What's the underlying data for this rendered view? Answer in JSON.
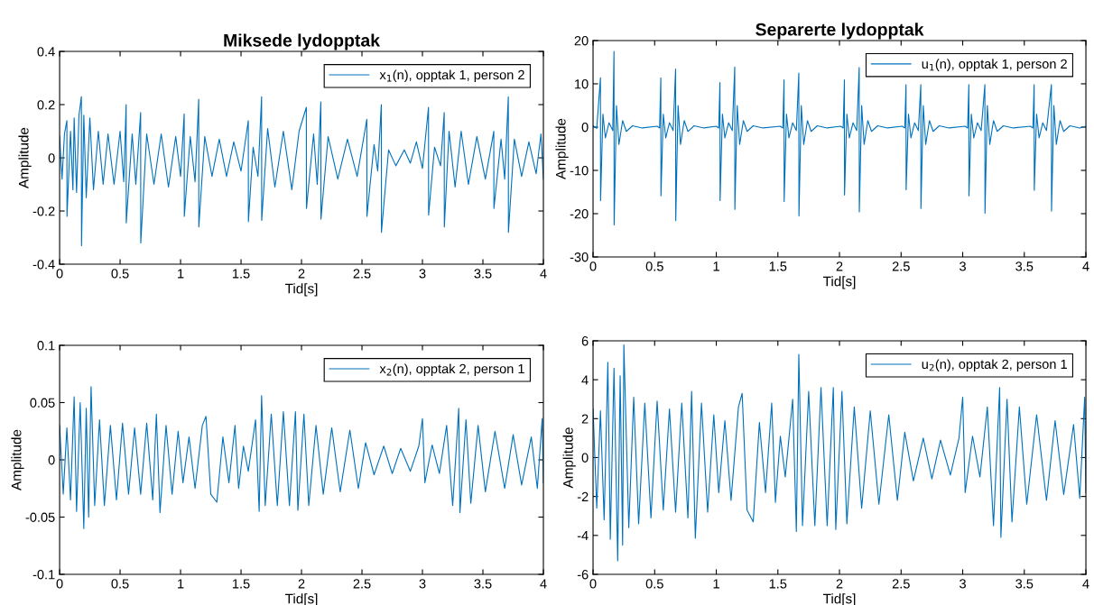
{
  "chart_data": [
    {
      "type": "line",
      "title": "Miksede lydopptak",
      "xlabel": "Tid[s]",
      "ylabel": "Amplitude",
      "xlim": [
        0,
        4
      ],
      "ylim": [
        -0.4,
        0.4
      ],
      "xticks": [
        0,
        0.5,
        1,
        1.5,
        2,
        2.5,
        3,
        3.5,
        4
      ],
      "yticks": [
        -0.4,
        -0.2,
        0,
        0.2,
        0.4
      ],
      "legend": "top right",
      "series": [
        {
          "name": "x$_{1}$(n), opptak 1, person 2",
          "color": "#0072bd",
          "x": [
            0,
            0.02,
            0.04,
            0.06,
            0.061,
            0.09,
            0.11,
            0.12,
            0.14,
            0.16,
            0.18,
            0.181,
            0.2,
            0.22,
            0.25,
            0.28,
            0.32,
            0.36,
            0.4,
            0.45,
            0.5,
            0.53,
            0.55,
            0.551,
            0.6,
            0.63,
            0.67,
            0.671,
            0.72,
            0.78,
            0.84,
            0.9,
            0.96,
            1.0,
            1.03,
            1.031,
            1.08,
            1.12,
            1.15,
            1.151,
            1.2,
            1.26,
            1.32,
            1.38,
            1.44,
            1.5,
            1.56,
            1.561,
            1.6,
            1.64,
            1.67,
            1.671,
            1.72,
            1.78,
            1.85,
            1.92,
            1.98,
            2.04,
            2.041,
            2.1,
            2.13,
            2.16,
            2.161,
            2.22,
            2.3,
            2.38,
            2.46,
            2.54,
            2.541,
            2.6,
            2.63,
            2.66,
            2.661,
            2.72,
            2.78,
            2.85,
            2.9,
            2.95,
            3.0,
            3.05,
            3.051,
            3.1,
            3.15,
            3.18,
            3.181,
            3.22,
            3.27,
            3.32,
            3.38,
            3.45,
            3.52,
            3.59,
            3.591,
            3.65,
            3.68,
            3.71,
            3.711,
            3.76,
            3.82,
            3.88,
            3.94,
            3.98,
            4.0
          ],
          "values": [
            0.08,
            -0.08,
            0.09,
            0.14,
            -0.22,
            0.1,
            -0.12,
            0.15,
            -0.13,
            0.16,
            0.23,
            -0.33,
            0.16,
            -0.15,
            0.15,
            -0.12,
            0.1,
            -0.1,
            0.09,
            -0.1,
            0.1,
            -0.09,
            0.2,
            -0.245,
            0.09,
            -0.1,
            0.17,
            -0.32,
            0.09,
            -0.1,
            0.09,
            -0.11,
            0.08,
            -0.07,
            0.165,
            -0.22,
            0.08,
            -0.09,
            0.22,
            -0.26,
            0.08,
            -0.07,
            0.07,
            -0.07,
            0.06,
            -0.05,
            0.14,
            -0.24,
            0.04,
            -0.07,
            0.23,
            -0.235,
            0.11,
            -0.11,
            0.1,
            -0.12,
            0.1,
            0.19,
            -0.19,
            0.09,
            -0.1,
            0.21,
            -0.23,
            0.08,
            -0.08,
            0.07,
            -0.07,
            0.145,
            -0.22,
            0.05,
            -0.05,
            0.2,
            -0.28,
            0.03,
            -0.03,
            0.03,
            -0.02,
            0.06,
            -0.04,
            0.19,
            -0.215,
            0.04,
            -0.03,
            0.17,
            -0.26,
            0.1,
            -0.11,
            0.1,
            -0.1,
            0.08,
            -0.08,
            0.1,
            -0.19,
            0.07,
            -0.08,
            0.23,
            -0.28,
            0.07,
            -0.07,
            0.06,
            -0.06,
            0.09,
            -0.08
          ]
        }
      ]
    },
    {
      "type": "line",
      "title": "Separerte lydopptak",
      "xlabel": "Tid[s]",
      "ylabel": "Amplitude",
      "xlim": [
        0,
        4
      ],
      "ylim": [
        -30,
        20
      ],
      "xticks": [
        0,
        0.5,
        1,
        1.5,
        2,
        2.5,
        3,
        3.5,
        4
      ],
      "yticks": [
        -30,
        -20,
        -10,
        0,
        10,
        20
      ],
      "legend": "top right",
      "series": [
        {
          "name": "u$_{1}$(n), opptak 1, person 2",
          "color": "#0072bd",
          "x": [
            0,
            0.03,
            0.06,
            0.061,
            0.08,
            0.1,
            0.13,
            0.16,
            0.17,
            0.171,
            0.19,
            0.21,
            0.24,
            0.27,
            0.32,
            0.4,
            0.52,
            0.54,
            0.55,
            0.551,
            0.57,
            0.59,
            0.62,
            0.65,
            0.67,
            0.671,
            0.69,
            0.71,
            0.74,
            0.77,
            0.82,
            0.9,
            1.0,
            1.02,
            1.03,
            1.031,
            1.05,
            1.07,
            1.1,
            1.13,
            1.15,
            1.151,
            1.17,
            1.19,
            1.22,
            1.25,
            1.3,
            1.38,
            1.52,
            1.54,
            1.55,
            1.551,
            1.57,
            1.59,
            1.62,
            1.65,
            1.67,
            1.671,
            1.69,
            1.71,
            1.74,
            1.77,
            1.82,
            1.9,
            2.01,
            2.03,
            2.04,
            2.041,
            2.06,
            2.08,
            2.11,
            2.14,
            2.16,
            2.161,
            2.18,
            2.2,
            2.23,
            2.26,
            2.31,
            2.39,
            2.51,
            2.53,
            2.54,
            2.541,
            2.56,
            2.58,
            2.61,
            2.64,
            2.66,
            2.661,
            2.68,
            2.7,
            2.73,
            2.76,
            2.81,
            2.89,
            3.02,
            3.04,
            3.05,
            3.051,
            3.07,
            3.09,
            3.12,
            3.15,
            3.18,
            3.181,
            3.2,
            3.22,
            3.25,
            3.28,
            3.33,
            3.41,
            3.55,
            3.57,
            3.58,
            3.581,
            3.6,
            3.62,
            3.65,
            3.68,
            3.72,
            3.721,
            3.74,
            3.76,
            3.79,
            3.82,
            3.87,
            3.95,
            4.0
          ],
          "values": [
            0.3,
            -0.3,
            11.4,
            -17,
            3,
            -2.5,
            1,
            -0.8,
            17.5,
            -22.6,
            5,
            -4,
            1.5,
            -1,
            0.3,
            -0.2,
            0.2,
            -0.2,
            11.4,
            -15.9,
            3,
            -2.5,
            1,
            -0.8,
            13.4,
            -21.6,
            5,
            -4,
            1.5,
            -1,
            0.3,
            -0.2,
            0.2,
            -0.2,
            10.3,
            -17,
            3,
            -2.5,
            1,
            -0.8,
            13.9,
            -19,
            5,
            -4,
            1.5,
            -1,
            0.3,
            -0.2,
            0.2,
            -0.2,
            10.9,
            -17.2,
            3,
            -2.5,
            1,
            -0.8,
            12.5,
            -20.5,
            5,
            -4,
            1.5,
            -1,
            0.3,
            -0.2,
            0.2,
            -0.2,
            10.9,
            -15.7,
            3,
            -2.5,
            1,
            -0.8,
            13.8,
            -19.6,
            5,
            -4,
            1.5,
            -1,
            0.3,
            -0.2,
            0.2,
            -0.2,
            9.8,
            -14.5,
            3,
            -2.5,
            1,
            -0.8,
            9.8,
            -18.8,
            5,
            -4,
            1.5,
            -1,
            0.3,
            -0.2,
            0.2,
            -0.2,
            9.8,
            -15.9,
            3,
            -2.5,
            1,
            -0.8,
            9.8,
            -19.9,
            5,
            -4,
            1.5,
            -1,
            0.3,
            -0.2,
            0.2,
            -0.2,
            9.8,
            -14.6,
            3,
            -2.5,
            1,
            -0.8,
            9.8,
            -19.4,
            5,
            -4,
            1.5,
            -1,
            0.3,
            -0.2,
            0.2
          ]
        }
      ]
    },
    {
      "type": "line",
      "xlabel": "Tid[s]",
      "ylabel": "Amplitude",
      "xlim": [
        0,
        4
      ],
      "ylim": [
        -0.1,
        0.1
      ],
      "xticks": [
        0,
        0.5,
        1,
        1.5,
        2,
        2.5,
        3,
        3.5,
        4
      ],
      "yticks": [
        -0.1,
        -0.05,
        0,
        0.05,
        0.1
      ],
      "legend": "top right",
      "series": [
        {
          "name": "x$_{2}$(n), opptak 2, person 1",
          "color": "#0072bd",
          "x": [
            0,
            0.03,
            0.06,
            0.09,
            0.12,
            0.14,
            0.17,
            0.2,
            0.22,
            0.24,
            0.26,
            0.29,
            0.33,
            0.37,
            0.42,
            0.47,
            0.52,
            0.57,
            0.62,
            0.67,
            0.72,
            0.77,
            0.8,
            0.83,
            0.88,
            0.93,
            0.98,
            1.02,
            1.07,
            1.12,
            1.18,
            1.21,
            1.25,
            1.3,
            1.35,
            1.4,
            1.45,
            1.48,
            1.52,
            1.56,
            1.62,
            1.65,
            1.67,
            1.7,
            1.75,
            1.8,
            1.85,
            1.9,
            1.95,
            1.97,
            2.02,
            2.06,
            2.12,
            2.18,
            2.25,
            2.32,
            2.4,
            2.47,
            2.53,
            2.6,
            2.68,
            2.75,
            2.82,
            2.9,
            2.97,
            3.0,
            3.02,
            3.08,
            3.14,
            3.2,
            3.25,
            3.3,
            3.31,
            3.36,
            3.4,
            3.46,
            3.52,
            3.6,
            3.68,
            3.75,
            3.82,
            3.9,
            3.95,
            3.99,
            4.0
          ],
          "values": [
            0.03,
            -0.03,
            0.028,
            -0.035,
            0.055,
            -0.045,
            0.05,
            -0.06,
            0.045,
            -0.05,
            0.064,
            -0.04,
            0.035,
            -0.04,
            0.03,
            -0.035,
            0.032,
            -0.03,
            0.028,
            -0.03,
            0.032,
            -0.035,
            0.04,
            -0.046,
            0.03,
            -0.03,
            0.025,
            -0.02,
            0.02,
            -0.025,
            0.03,
            0.038,
            -0.03,
            -0.037,
            0.02,
            -0.02,
            0.03,
            -0.025,
            0.012,
            -0.01,
            0.035,
            -0.045,
            0.056,
            -0.04,
            0.04,
            -0.04,
            0.042,
            -0.04,
            0.042,
            -0.044,
            0.04,
            -0.04,
            0.03,
            -0.03,
            0.028,
            -0.028,
            0.026,
            -0.025,
            0.015,
            -0.013,
            0.012,
            -0.012,
            0.01,
            -0.01,
            0.012,
            0.036,
            -0.02,
            0.013,
            -0.012,
            0.03,
            -0.04,
            0.045,
            -0.046,
            0.035,
            -0.038,
            0.03,
            -0.028,
            0.025,
            -0.025,
            0.022,
            -0.022,
            0.02,
            -0.025,
            0.036,
            -0.02
          ]
        }
      ]
    },
    {
      "type": "line",
      "xlabel": "Tid[s]",
      "ylabel": "Amplitude",
      "xlim": [
        0,
        4
      ],
      "ylim": [
        -6,
        6
      ],
      "xticks": [
        0,
        0.5,
        1,
        1.5,
        2,
        2.5,
        3,
        3.5,
        4
      ],
      "yticks": [
        -6,
        -4,
        -2,
        0,
        2,
        4,
        6
      ],
      "legend": "top right",
      "series": [
        {
          "name": "u$_{2}$(n), opptak 2, person 1",
          "color": "#0072bd",
          "x": [
            0,
            0.03,
            0.06,
            0.09,
            0.12,
            0.14,
            0.17,
            0.2,
            0.22,
            0.24,
            0.25,
            0.29,
            0.33,
            0.37,
            0.42,
            0.47,
            0.52,
            0.57,
            0.62,
            0.67,
            0.72,
            0.77,
            0.8,
            0.83,
            0.88,
            0.93,
            0.98,
            1.02,
            1.07,
            1.12,
            1.18,
            1.21,
            1.25,
            1.3,
            1.35,
            1.4,
            1.45,
            1.48,
            1.52,
            1.56,
            1.62,
            1.65,
            1.67,
            1.7,
            1.75,
            1.8,
            1.85,
            1.9,
            1.95,
            1.97,
            2.02,
            2.06,
            2.12,
            2.18,
            2.25,
            2.32,
            2.4,
            2.47,
            2.53,
            2.6,
            2.68,
            2.75,
            2.82,
            2.9,
            2.97,
            3.0,
            3.02,
            3.08,
            3.14,
            3.2,
            3.25,
            3.3,
            3.31,
            3.36,
            3.4,
            3.46,
            3.52,
            3.6,
            3.68,
            3.75,
            3.82,
            3.9,
            3.95,
            3.99,
            4.0
          ],
          "values": [
            2.5,
            -2.6,
            2.4,
            -3.2,
            4.9,
            -4.2,
            4.6,
            -5.3,
            4.2,
            -4.5,
            5.8,
            -3.6,
            3.1,
            -3.4,
            2.8,
            -3.1,
            2.9,
            -2.7,
            2.5,
            -2.8,
            2.8,
            -3.1,
            3.4,
            -4.15,
            2.8,
            -2.8,
            2.2,
            -1.8,
            1.9,
            -2.2,
            2.6,
            3.3,
            -2.7,
            -3.3,
            1.8,
            -1.8,
            2.8,
            -2.3,
            1.1,
            -1.0,
            3.0,
            -3.8,
            5.3,
            -3.5,
            3.4,
            -3.5,
            3.6,
            -3.5,
            3.6,
            -3.7,
            3.4,
            -3.4,
            2.6,
            -2.6,
            2.4,
            -2.4,
            2.2,
            -2.2,
            1.3,
            -1.2,
            1.0,
            -1.1,
            0.9,
            -0.9,
            1.0,
            3.1,
            -1.8,
            1.1,
            -1.0,
            2.6,
            -3.5,
            3.6,
            -4.1,
            3.0,
            -3.3,
            2.6,
            -2.4,
            2.2,
            -2.2,
            1.9,
            -1.9,
            1.7,
            -2.1,
            3.1,
            -1.8
          ]
        }
      ]
    }
  ]
}
